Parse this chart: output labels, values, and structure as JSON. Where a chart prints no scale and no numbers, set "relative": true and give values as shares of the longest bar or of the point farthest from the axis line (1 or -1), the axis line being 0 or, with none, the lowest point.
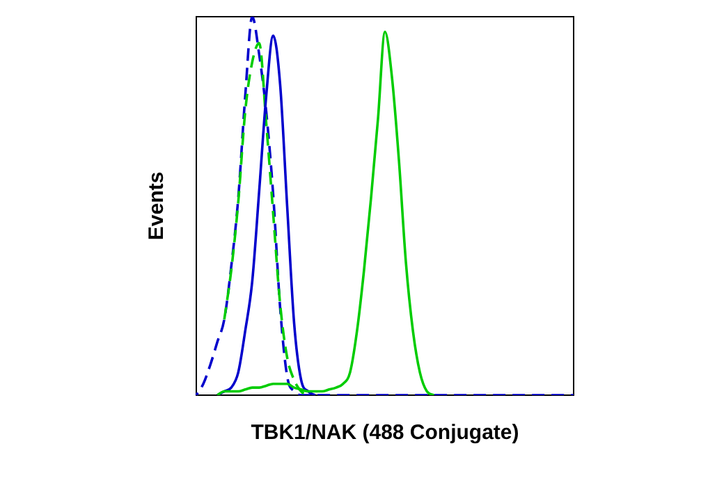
{
  "chart_data": {
    "type": "line",
    "relative": true,
    "xlabel": "TBK1/NAK (488 Conjugate)",
    "ylabel": "Events",
    "categories": [
      null,
      null,
      null,
      null,
      null,
      null,
      null,
      null,
      null,
      null,
      null,
      null,
      null,
      null,
      null,
      null,
      null,
      null,
      null,
      null,
      null,
      null,
      null,
      null,
      null,
      null,
      null,
      null,
      null,
      null,
      null,
      null,
      null,
      null,
      null,
      null,
      null,
      null,
      null,
      null,
      null,
      null,
      null,
      null,
      null,
      null,
      null,
      null,
      null,
      null,
      null,
      null,
      null,
      null,
      null
    ],
    "series": [
      {
        "color": "#00cc00",
        "line_style": "solid",
        "values": [
          null,
          null,
          null,
          0,
          0.01,
          0.01,
          0.01,
          0.015,
          0.02,
          0.02,
          0.025,
          0.03,
          0.03,
          0.03,
          0.02,
          0.015,
          0.01,
          0.01,
          0.01,
          0.015,
          0.02,
          0.03,
          0.06,
          0.17,
          0.33,
          0.52,
          0.73,
          0.96,
          0.84,
          0.62,
          0.35,
          0.17,
          0.06,
          0.01,
          0,
          null,
          null,
          null,
          null,
          null,
          null,
          null,
          null,
          null,
          null,
          null,
          null,
          null,
          null,
          null,
          null,
          null,
          null,
          null,
          null
        ]
      },
      {
        "color": "#0000cc",
        "line_style": "solid",
        "values": [
          null,
          null,
          null,
          0,
          0.01,
          0.02,
          0.06,
          0.17,
          0.3,
          0.54,
          0.79,
          0.95,
          0.82,
          0.5,
          0.19,
          0.04,
          0.01,
          0,
          null,
          null,
          null,
          null,
          null,
          null,
          null,
          null,
          null,
          null,
          null,
          null,
          null,
          null,
          null,
          null,
          null,
          null,
          null,
          null,
          null,
          null,
          null,
          null,
          null,
          null,
          null,
          null,
          null,
          null,
          null,
          null,
          null,
          null,
          null,
          null,
          null
        ]
      },
      {
        "color": "#00cc00",
        "line_style": "dashed",
        "values": [
          null,
          null,
          null,
          null,
          0.2,
          0.33,
          0.51,
          0.75,
          0.88,
          0.93,
          0.72,
          0.48,
          0.24,
          0.1,
          0.04,
          0.01,
          0,
          null,
          null,
          null,
          null,
          null,
          null,
          null,
          null,
          null,
          null,
          null,
          null,
          null,
          null,
          null,
          null,
          null,
          null,
          null,
          null,
          null,
          null,
          null,
          null,
          null,
          null,
          null,
          null,
          null,
          null,
          null,
          null,
          null,
          null,
          null,
          null,
          null,
          null
        ]
      },
      {
        "color": "#0000cc",
        "line_style": "dashed",
        "values": [
          0,
          0.03,
          0.08,
          0.14,
          0.2,
          0.34,
          0.52,
          0.79,
          1,
          0.9,
          0.75,
          0.53,
          0.23,
          0.05,
          0.01,
          0,
          0,
          0,
          0,
          0,
          0,
          0,
          0,
          0,
          0,
          0,
          0,
          0,
          0,
          0,
          0,
          0,
          0,
          0,
          0,
          0,
          0,
          0,
          0,
          0,
          0,
          0,
          0,
          0,
          0,
          0,
          0,
          0,
          0,
          0,
          0,
          0,
          0,
          0,
          0
        ]
      }
    ]
  }
}
